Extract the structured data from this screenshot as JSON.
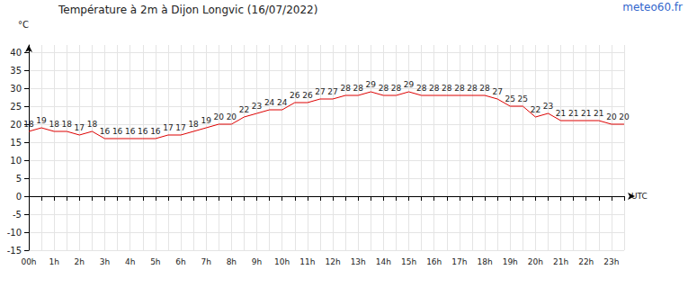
{
  "chart_data": {
    "type": "line",
    "title": "Température à 2m à Dijon Longvic (16/07/2022)",
    "annotations": [
      "meteo60.fr"
    ],
    "ylabel": "°C",
    "xlabel": "UTC",
    "categories": [
      "00h",
      null,
      "1h",
      null,
      "2h",
      null,
      "3h",
      null,
      "4h",
      null,
      "5h",
      null,
      "6h",
      null,
      "7h",
      null,
      "8h",
      null,
      "9h",
      null,
      "10h",
      null,
      "11h",
      null,
      "12h",
      null,
      "13h",
      null,
      "14h",
      null,
      "15h",
      null,
      "16h",
      null,
      "17h",
      null,
      "18h",
      null,
      "19h",
      null,
      "20h",
      null,
      "21h",
      null,
      "22h",
      null,
      "23h",
      null
    ],
    "values": [
      18,
      19,
      18,
      18,
      17,
      18,
      16,
      16,
      16,
      16,
      16,
      17,
      17,
      18,
      19,
      20,
      20,
      22,
      23,
      24,
      24,
      26,
      26,
      27,
      27,
      28,
      28,
      29,
      28,
      28,
      29,
      28,
      28,
      28,
      28,
      28,
      28,
      27,
      25,
      25,
      22,
      23,
      21,
      21,
      21,
      21,
      20,
      20
    ],
    "color": "#dd0000",
    "ylim": [
      -15,
      42
    ],
    "yticks": [
      -15,
      -10,
      -5,
      0,
      5,
      10,
      15,
      20,
      25,
      30,
      35,
      40
    ],
    "grid": true,
    "data_labels": true
  }
}
